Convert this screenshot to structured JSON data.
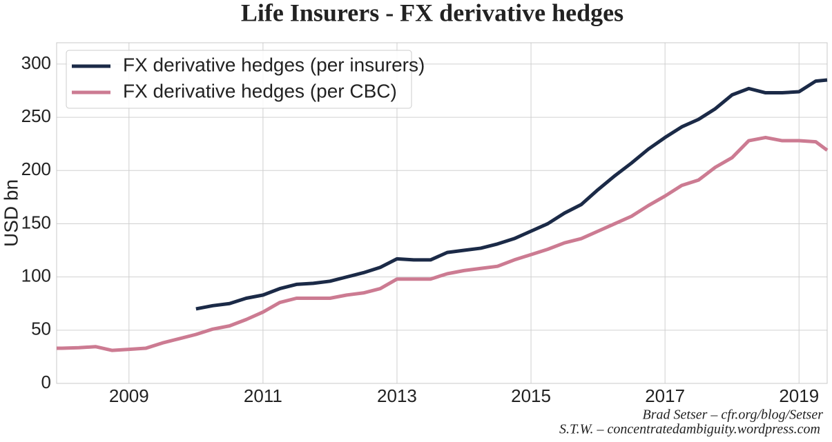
{
  "chart_data": {
    "type": "line",
    "title": "Life Insurers - FX derivative hedges",
    "y_label": "USD bn",
    "annotations": [
      "Brad Setser – cfr.org/blog/Setser",
      "S.T.W. – concentratedambiguity.wordpress.com"
    ],
    "x": [
      2007.92,
      2008.0,
      2008.25,
      2008.5,
      2008.75,
      2009.0,
      2009.25,
      2009.5,
      2009.75,
      2010.0,
      2010.25,
      2010.5,
      2010.75,
      2011.0,
      2011.25,
      2011.5,
      2011.75,
      2012.0,
      2012.25,
      2012.5,
      2012.75,
      2013.0,
      2013.25,
      2013.5,
      2013.75,
      2014.0,
      2014.25,
      2014.5,
      2014.75,
      2015.0,
      2015.25,
      2015.5,
      2015.75,
      2016.0,
      2016.25,
      2016.5,
      2016.75,
      2017.0,
      2017.25,
      2017.5,
      2017.75,
      2018.0,
      2018.25,
      2018.5,
      2018.75,
      2019.0,
      2019.25,
      2019.42
    ],
    "series": [
      {
        "name": "FX derivative hedges (per insurers)",
        "color": "#1b2a47",
        "values": [
          null,
          null,
          null,
          null,
          null,
          null,
          null,
          null,
          null,
          70,
          73,
          75,
          80,
          83,
          89,
          93,
          94,
          96,
          100,
          104,
          109,
          117,
          116,
          116,
          123,
          125,
          127,
          131,
          136,
          143,
          150,
          160,
          168,
          182,
          195,
          207,
          220,
          231,
          241,
          248,
          258,
          271,
          277,
          273,
          273,
          274,
          284,
          285
        ]
      },
      {
        "name": "FX derivative hedges (per CBC)",
        "color": "#cc7b92",
        "values": [
          33,
          33,
          33.5,
          34.5,
          31,
          32,
          33,
          38,
          42,
          46,
          51,
          54,
          60,
          67,
          76,
          80,
          80,
          80,
          83,
          85,
          89,
          98,
          98,
          98,
          103,
          106,
          108,
          110,
          116,
          121,
          126,
          132,
          136,
          143,
          150,
          157,
          167,
          176,
          186,
          191,
          203,
          212,
          228,
          231,
          228,
          228,
          227,
          219
        ]
      }
    ],
    "xlim": [
      2007.92,
      2019.42
    ],
    "xticks": [
      2009,
      2011,
      2013,
      2015,
      2017,
      2019
    ],
    "ylim": [
      0,
      320
    ],
    "yticks": [
      0,
      50,
      100,
      150,
      200,
      250,
      300
    ],
    "grid": true,
    "legend": "upper-left"
  }
}
